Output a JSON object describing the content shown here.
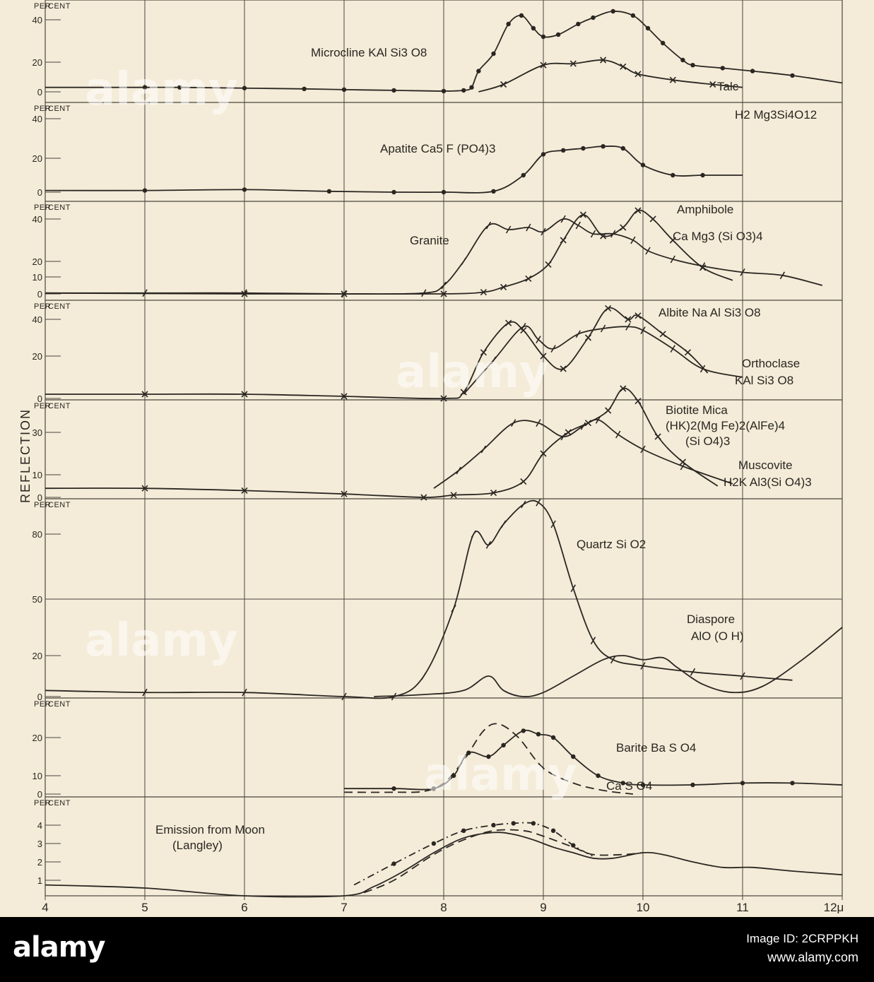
{
  "chart_data": {
    "type": "line",
    "ylabel": "REFLECTION",
    "x_ticks": [
      "4",
      "5",
      "6",
      "7",
      "8",
      "9",
      "10",
      "11",
      "12μ"
    ],
    "xlim": [
      4,
      12
    ],
    "unit_label": "Per Cent",
    "panels": [
      {
        "yticks": [
          "40",
          "20",
          "0"
        ],
        "ylim": [
          0,
          45
        ],
        "series": [
          {
            "name": "Microcline KAl Si3O8",
            "marker": "dot",
            "style": "solid",
            "x": [
              4.0,
              5.0,
              5.35,
              6.0,
              6.6,
              7.0,
              7.5,
              8.0,
              8.2,
              8.28,
              8.35,
              8.5,
              8.65,
              8.78,
              8.9,
              9.0,
              9.15,
              9.35,
              9.5,
              9.7,
              9.9,
              10.05,
              10.2,
              10.4,
              10.5,
              10.8,
              11.1,
              11.5,
              12.0
            ],
            "y": [
              3,
              3,
              3,
              2.5,
              2,
              1.5,
              1,
              0.5,
              1,
              3,
              14,
              24,
              38,
              42,
              36,
              32,
              33,
              38,
              41,
              44,
              42,
              36,
              29,
              21,
              18,
              16,
              14,
              11,
              6
            ]
          },
          {
            "name": "Talc H2Mg3Si4O12",
            "marker": "x",
            "style": "solid",
            "x": [
              8.35,
              8.6,
              9.0,
              9.3,
              9.6,
              9.8,
              9.95,
              10.3,
              10.7,
              11.0
            ],
            "y": [
              0,
              5,
              18,
              19,
              21,
              17,
              12,
              8,
              5,
              3
            ]
          }
        ]
      },
      {
        "yticks": [
          "40",
          "20",
          "0"
        ],
        "ylim": [
          0,
          45
        ],
        "series": [
          {
            "name": "Apatite Ca5F(PO4)3",
            "marker": "dot",
            "style": "solid",
            "x": [
              4.0,
              5.0,
              6.0,
              6.85,
              7.5,
              8.0,
              8.5,
              8.8,
              9.0,
              9.2,
              9.4,
              9.6,
              9.8,
              10.0,
              10.3,
              10.6,
              11.0
            ],
            "y": [
              1,
              1,
              1.5,
              0.5,
              0,
              0,
              0.5,
              10,
              22,
              24,
              25,
              26,
              25,
              16,
              10,
              10,
              10
            ]
          }
        ]
      },
      {
        "yticks": [
          "40",
          "20",
          "10",
          "0"
        ],
        "ylim": [
          0,
          45
        ],
        "series": [
          {
            "name": "Granite",
            "marker": "tick",
            "style": "solid",
            "x": [
              4.0,
              5.0,
              6.0,
              7.0,
              7.8,
              8.0,
              8.2,
              8.45,
              8.65,
              8.85,
              9.0,
              9.2,
              9.35,
              9.5,
              9.7,
              9.9,
              10.05,
              10.3,
              10.6,
              11.0,
              11.4,
              11.8
            ],
            "y": [
              0.5,
              0.5,
              0.5,
              0,
              0.5,
              5,
              20,
              37,
              35,
              36,
              34,
              40,
              37,
              33,
              33,
              30,
              25,
              21,
              17,
              13,
              11,
              5
            ]
          },
          {
            "name": "Amphibole Ca Mg3(SiO3)4",
            "marker": "x",
            "style": "solid",
            "x": [
              4.0,
              6.0,
              7.0,
              8.0,
              8.4,
              8.6,
              8.85,
              9.05,
              9.2,
              9.4,
              9.6,
              9.8,
              9.95,
              10.1,
              10.3,
              10.6,
              10.9
            ],
            "y": [
              0.5,
              0,
              0,
              0,
              1,
              4,
              9,
              18,
              30,
              42,
              32,
              36,
              44,
              40,
              30,
              16,
              8
            ]
          }
        ]
      },
      {
        "yticks": [
          "40",
          "20",
          "0"
        ],
        "ylim": [
          0,
          45
        ],
        "series": [
          {
            "name": "Albite Na Al Si3O8",
            "marker": "x",
            "style": "solid",
            "x": [
              4.0,
              5.0,
              6.0,
              7.0,
              8.0,
              8.2,
              8.4,
              8.65,
              8.8,
              9.0,
              9.2,
              9.45,
              9.65,
              9.85,
              9.95,
              10.2,
              10.45,
              10.65
            ],
            "y": [
              2,
              2,
              2,
              1,
              0,
              3,
              22,
              38,
              34,
              20,
              14,
              30,
              46,
              40,
              42,
              32,
              22,
              12
            ]
          },
          {
            "name": "Orthoclase KAl Si3O8",
            "marker": "tick",
            "style": "solid",
            "x": [
              8.2,
              8.5,
              8.8,
              8.95,
              9.1,
              9.35,
              9.6,
              9.85,
              10.0,
              10.3,
              10.6,
              11.0
            ],
            "y": [
              2,
              18,
              36,
              29,
              24,
              32,
              35,
              36,
              34,
              24,
              14,
              10
            ]
          }
        ]
      },
      {
        "yticks": [
          "30",
          "10",
          "0"
        ],
        "ylim": [
          0,
          45
        ],
        "series": [
          {
            "name": "Biotite Mica (HK)2(MgFe)2(AlFe)4(SiO4)3",
            "marker": "x",
            "style": "solid",
            "x": [
              4.0,
              5.0,
              6.0,
              7.0,
              7.8,
              8.1,
              8.5,
              8.8,
              9.0,
              9.25,
              9.45,
              9.65,
              9.8,
              9.95,
              10.15,
              10.4,
              10.75
            ],
            "y": [
              4,
              4,
              3,
              1.5,
              0,
              1,
              2,
              7,
              20,
              30,
              33,
              37,
              44,
              40,
              28,
              16,
              5
            ]
          },
          {
            "name": "Muscovite H2K Al3(SiO4)3",
            "marker": "tick",
            "style": "solid",
            "x": [
              7.9,
              8.15,
              8.4,
              8.7,
              8.95,
              9.2,
              9.4,
              9.55,
              9.75,
              10.0,
              10.4,
              10.9
            ],
            "y": [
              4,
              12,
              22,
              33,
              33,
              28,
              32,
              34,
              29,
              22,
              14,
              6
            ]
          }
        ]
      },
      {
        "yticks": [
          "80",
          "50",
          "20",
          "0"
        ],
        "ylim": [
          0,
          100
        ],
        "series": [
          {
            "name": "Quartz Si O2",
            "marker": "tick",
            "style": "solid",
            "x": [
              4.0,
              5.0,
              6.0,
              7.0,
              7.5,
              7.8,
              8.1,
              8.3,
              8.45,
              8.6,
              8.8,
              8.95,
              9.1,
              9.3,
              9.5,
              9.7,
              10.0,
              10.5,
              11.0,
              11.5
            ],
            "y": [
              3,
              2,
              2,
              0,
              0,
              10,
              45,
              80,
              75,
              85,
              95,
              96,
              85,
              55,
              28,
              18,
              15,
              12,
              10,
              8
            ]
          },
          {
            "name": "Diaspore AlO(OH)",
            "marker": "none",
            "style": "solid",
            "x": [
              7.3,
              7.8,
              8.2,
              8.45,
              8.6,
              8.8,
              9.0,
              9.3,
              9.6,
              9.8,
              10.0,
              10.2,
              10.35,
              10.6,
              10.9,
              11.2,
              11.6,
              12.0
            ],
            "y": [
              0,
              1,
              3,
              10,
              3,
              0,
              2,
              10,
              18,
              20,
              18,
              19,
              14,
              6,
              2,
              5,
              18,
              35
            ]
          }
        ]
      },
      {
        "yticks": [
          "20",
          "10",
          "0"
        ],
        "ylim": [
          0,
          25
        ],
        "series": [
          {
            "name": "Barite Ba SO4",
            "marker": "dot",
            "style": "solid",
            "x": [
              7.0,
              7.5,
              7.9,
              8.1,
              8.25,
              8.45,
              8.6,
              8.8,
              8.95,
              9.1,
              9.3,
              9.55,
              9.8,
              10.0,
              10.5,
              11.0,
              11.5,
              12.0
            ],
            "y": [
              3,
              3,
              3,
              10,
              16,
              15,
              18,
              22,
              21,
              20,
              15,
              10,
              6,
              5,
              5,
              6,
              6,
              5
            ]
          },
          {
            "name": "Ca SO4",
            "marker": "none",
            "style": "dashed",
            "x": [
              7.0,
              7.5,
              7.8,
              8.0,
              8.2,
              8.4,
              8.55,
              8.75,
              9.0,
              9.3,
              9.6,
              9.9
            ],
            "y": [
              1,
              1,
              1.5,
              6,
              14,
              22,
              24,
              20,
              12,
              6,
              2,
              0
            ]
          }
        ]
      },
      {
        "yticks": [
          "4",
          "3",
          "2",
          "1"
        ],
        "ylim": [
          0,
          5
        ],
        "series": [
          {
            "name": "Emission from Moon (Langley)",
            "marker": "none",
            "style": "solid",
            "x": [
              4.0,
              5.0,
              6.0,
              7.0,
              7.3,
              7.6,
              7.9,
              8.2,
              8.5,
              8.7,
              8.9,
              9.1,
              9.3,
              9.5,
              9.7,
              10.0,
              10.2,
              10.5,
              10.8,
              11.1,
              11.5,
              12.0
            ],
            "y": [
              0.7,
              0.5,
              0,
              0,
              0.6,
              1.5,
              2.5,
              3.3,
              3.6,
              3.5,
              3.2,
              2.8,
              2.5,
              2.2,
              2.2,
              2.5,
              2.4,
              2.0,
              1.7,
              1.7,
              1.5,
              1.3
            ]
          },
          {
            "name": "Moon dash-dot",
            "marker": "dot",
            "style": "dashdot",
            "x": [
              7.1,
              7.5,
              7.9,
              8.2,
              8.5,
              8.7,
              8.9,
              9.1,
              9.3,
              9.5
            ],
            "y": [
              0.7,
              1.9,
              3.0,
              3.7,
              4.0,
              4.1,
              4.1,
              3.7,
              2.9,
              2.3
            ]
          },
          {
            "name": "Moon dashed",
            "marker": "none",
            "style": "dashed",
            "x": [
              7.2,
              7.5,
              7.9,
              8.2,
              8.5,
              8.8,
              9.0,
              9.3,
              9.5,
              9.8,
              10.0
            ],
            "y": [
              0.2,
              1.0,
              2.4,
              3.2,
              3.7,
              3.7,
              3.4,
              2.8,
              2.4,
              2.4,
              2.5
            ]
          }
        ]
      }
    ],
    "labels": [
      {
        "panel": 0,
        "text": "Microcline KAl Si3 O8"
      },
      {
        "panel": 0,
        "text": "Talc"
      },
      {
        "panel": 0,
        "text": "H2 Mg3Si4O12"
      },
      {
        "panel": 1,
        "text": "Apatite Ca5 F (PO4)3"
      },
      {
        "panel": 2,
        "text": "Granite"
      },
      {
        "panel": 2,
        "text": "Amphibole"
      },
      {
        "panel": 2,
        "text": "Ca Mg3 (Si O3)4"
      },
      {
        "panel": 3,
        "text": "Albite Na Al Si3 O8"
      },
      {
        "panel": 3,
        "text": "Orthoclase"
      },
      {
        "panel": 3,
        "text": "KAl Si3 O8"
      },
      {
        "panel": 4,
        "text": "Biotite Mica"
      },
      {
        "panel": 4,
        "text": "(HK)2(Mg Fe)2(AlFe)4"
      },
      {
        "panel": 4,
        "text": "(Si O4)3"
      },
      {
        "panel": 4,
        "text": "Muscovite"
      },
      {
        "panel": 4,
        "text": "H2K Al3(Si O4)3"
      },
      {
        "panel": 5,
        "text": "Quartz Si O2"
      },
      {
        "panel": 5,
        "text": "Diaspore"
      },
      {
        "panel": 5,
        "text": "AlO (O H)"
      },
      {
        "panel": 6,
        "text": "Barite Ba S O4"
      },
      {
        "panel": 6,
        "text": "Ca S O4"
      },
      {
        "panel": 7,
        "text": "Emission from Moon"
      },
      {
        "panel": 7,
        "text": "(Langley)"
      }
    ]
  },
  "watermark": {
    "logo": "alamy",
    "image_id": "Image ID: 2CRPPKH",
    "site": "www.alamy.com",
    "overlay": "alamy"
  },
  "colors": {
    "paper": "#f4ecd8",
    "ink": "#2a2622",
    "grid": "#4a453f"
  }
}
